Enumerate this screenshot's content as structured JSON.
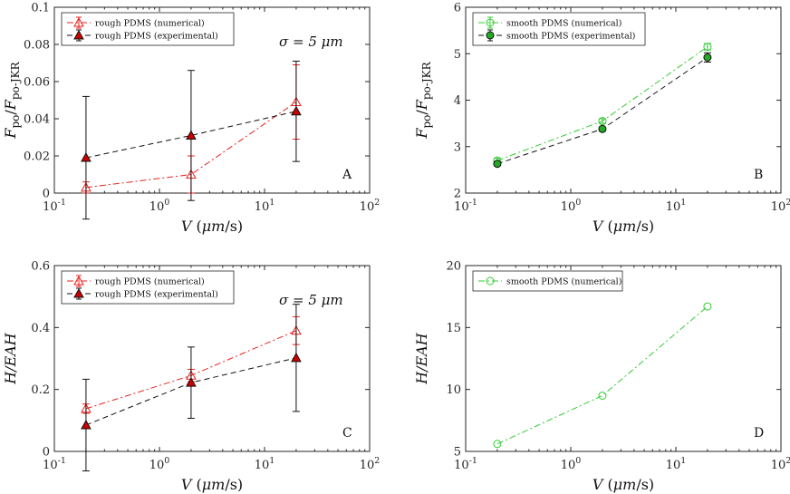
{
  "chart_data": [
    {
      "id": "A",
      "type": "scatter",
      "panel_label": "A",
      "annotation": "σ = 5 μm",
      "xlabel": "V (μm/s)",
      "ylabel": "Fpo/Fpo-JKR",
      "xscale": "log",
      "xlim": [
        0.1,
        100
      ],
      "ylim": [
        0,
        0.1
      ],
      "xticks": [
        0.1,
        1,
        10,
        100
      ],
      "xtick_labels": [
        "10^-1",
        "10^0",
        "10^1",
        "10^2"
      ],
      "yticks": [
        0,
        0.02,
        0.04,
        0.06,
        0.08,
        0.1
      ],
      "ytick_labels": [
        "0",
        "0.02",
        "0.04",
        "0.06",
        "0.08",
        "0.1"
      ],
      "legend_position": "top-left",
      "series": [
        {
          "name": "rough PDMS (numerical)",
          "color": "#e8211d",
          "dash": "7,3,2,3",
          "marker": "triangle-open",
          "x": [
            0.2,
            2,
            20
          ],
          "y": [
            0.003,
            0.01,
            0.049
          ],
          "err": [
            0.003,
            0.01,
            0.02
          ]
        },
        {
          "name": "rough PDMS (experimental)",
          "color": "#111111",
          "dash": "6,4",
          "marker": "triangle-filled",
          "x": [
            0.2,
            2,
            20
          ],
          "y": [
            0.019,
            0.031,
            0.044
          ],
          "err": [
            0.033,
            0.035,
            0.027
          ]
        }
      ]
    },
    {
      "id": "B",
      "type": "scatter",
      "panel_label": "B",
      "annotation": "",
      "xlabel": "V (μm/s)",
      "ylabel": "Fpo/Fpo-JKR",
      "xscale": "log",
      "xlim": [
        0.1,
        100
      ],
      "ylim": [
        2,
        6
      ],
      "xticks": [
        0.1,
        1,
        10,
        100
      ],
      "xtick_labels": [
        "10^-1",
        "10^0",
        "10^1",
        "10^2"
      ],
      "yticks": [
        2,
        3,
        4,
        5,
        6
      ],
      "ytick_labels": [
        "2",
        "3",
        "4",
        "5",
        "6"
      ],
      "legend_position": "top-left",
      "series": [
        {
          "name": "smooth PDMS (numerical)",
          "color": "#33cc33",
          "dash": "7,3,2,3",
          "marker": "circle-open",
          "x": [
            0.2,
            2,
            20
          ],
          "y": [
            2.7,
            3.55,
            5.15
          ],
          "err": [
            0.05,
            0.05,
            0.07
          ]
        },
        {
          "name": "smooth PDMS (experimental)",
          "color": "#111111",
          "dash": "6,4",
          "marker": "circle-filled",
          "x": [
            0.2,
            2,
            20
          ],
          "y": [
            2.63,
            3.38,
            4.92
          ],
          "err": [
            0.04,
            0.04,
            0.1
          ]
        }
      ]
    },
    {
      "id": "C",
      "type": "scatter",
      "panel_label": "C",
      "annotation": "σ = 5 μm",
      "xlabel": "V (μm/s)",
      "ylabel": "H/EAH",
      "xscale": "log",
      "xlim": [
        0.1,
        100
      ],
      "ylim": [
        0,
        0.6
      ],
      "xticks": [
        0.1,
        1,
        10,
        100
      ],
      "xtick_labels": [
        "10^-1",
        "10^0",
        "10^1",
        "10^2"
      ],
      "yticks": [
        0,
        0.2,
        0.4,
        0.6
      ],
      "ytick_labels": [
        "0",
        "0.2",
        "0.4",
        "0.6"
      ],
      "legend_position": "top-left",
      "series": [
        {
          "name": "rough PDMS (numerical)",
          "color": "#e8211d",
          "dash": "7,3,2,3",
          "marker": "triangle-open",
          "x": [
            0.2,
            2,
            20
          ],
          "y": [
            0.138,
            0.245,
            0.39
          ],
          "err": [
            0.015,
            0.02,
            0.045
          ]
        },
        {
          "name": "rough PDMS (experimental)",
          "color": "#111111",
          "dash": "6,4",
          "marker": "triangle-filled",
          "x": [
            0.2,
            2,
            20
          ],
          "y": [
            0.085,
            0.222,
            0.302
          ],
          "err": [
            0.148,
            0.115,
            0.173
          ]
        }
      ]
    },
    {
      "id": "D",
      "type": "scatter",
      "panel_label": "D",
      "annotation": "",
      "xlabel": "V (μm/s)",
      "ylabel": "H/EAH",
      "xscale": "log",
      "xlim": [
        0.1,
        100
      ],
      "ylim": [
        5,
        20
      ],
      "xticks": [
        0.1,
        1,
        10,
        100
      ],
      "xtick_labels": [
        "10^-1",
        "10^0",
        "10^1",
        "10^2"
      ],
      "yticks": [
        5,
        10,
        15,
        20
      ],
      "ytick_labels": [
        "5",
        "10",
        "15",
        "20"
      ],
      "legend_position": "top-left",
      "series": [
        {
          "name": "smooth PDMS (numerical)",
          "color": "#33cc33",
          "dash": "7,3,2,3",
          "marker": "circle-open",
          "x": [
            0.2,
            2,
            20
          ],
          "y": [
            5.6,
            9.5,
            16.7
          ],
          "err": [
            0,
            0,
            0
          ]
        }
      ]
    }
  ]
}
